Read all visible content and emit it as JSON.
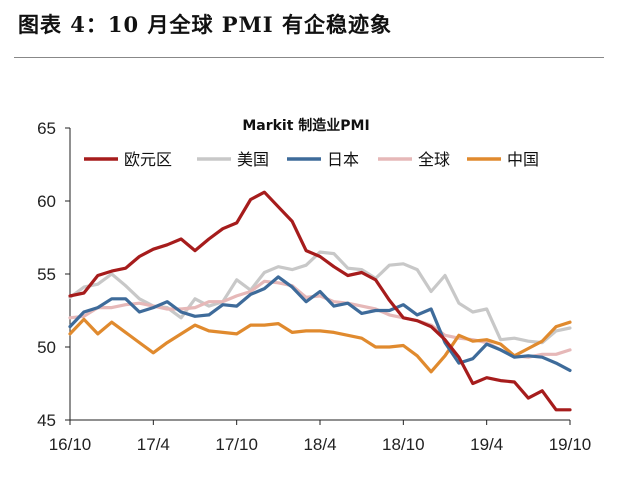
{
  "figure": {
    "title": "图表 4：10 月全球 PMI 有企稳迹象"
  },
  "colors": {
    "eurozone": "#a61c1c",
    "us": "#c8c8c8",
    "japan": "#3e6b9a",
    "global": "#e6b8b8",
    "china": "#e08a2e"
  },
  "chart_data": {
    "type": "line",
    "title": "Markit 制造业PMI",
    "xlabel": "",
    "ylabel": "",
    "ylim": [
      45,
      65
    ],
    "yticks": [
      "45",
      "50",
      "55",
      "60",
      "65"
    ],
    "x": [
      "16/10",
      "16/11",
      "16/12",
      "17/1",
      "17/2",
      "17/3",
      "17/4",
      "17/5",
      "17/6",
      "17/7",
      "17/8",
      "17/9",
      "17/10",
      "17/11",
      "17/12",
      "18/1",
      "18/2",
      "18/3",
      "18/4",
      "18/5",
      "18/6",
      "18/7",
      "18/8",
      "18/9",
      "18/10",
      "18/11",
      "18/12",
      "19/1",
      "19/2",
      "19/3",
      "19/4",
      "19/5",
      "19/6",
      "19/7",
      "19/8",
      "19/9",
      "19/10"
    ],
    "xtick_labels": [
      "16/10",
      "17/4",
      "17/10",
      "18/4",
      "18/10",
      "19/4",
      "19/10"
    ],
    "legend_position": "top-left",
    "grid": false,
    "series": [
      {
        "name": "欧元区",
        "color_key": "eurozone",
        "values": [
          53.5,
          53.7,
          54.9,
          55.2,
          55.4,
          56.2,
          56.7,
          57.0,
          57.4,
          56.6,
          57.4,
          58.1,
          58.5,
          60.1,
          60.6,
          59.6,
          58.6,
          56.6,
          56.2,
          55.5,
          54.9,
          55.1,
          54.6,
          53.2,
          52.0,
          51.8,
          51.4,
          50.5,
          49.3,
          47.5,
          47.9,
          47.7,
          47.6,
          46.5,
          47.0,
          45.7,
          45.7
        ]
      },
      {
        "name": "美国",
        "color_key": "us",
        "values": [
          53.4,
          54.1,
          54.3,
          55.0,
          54.2,
          53.3,
          52.8,
          52.7,
          52.0,
          53.3,
          52.8,
          53.1,
          54.6,
          53.9,
          55.1,
          55.5,
          55.3,
          55.6,
          56.5,
          56.4,
          55.4,
          55.3,
          54.7,
          55.6,
          55.7,
          55.3,
          53.8,
          54.9,
          53.0,
          52.4,
          52.6,
          50.5,
          50.6,
          50.4,
          50.3,
          51.1,
          51.3
        ]
      },
      {
        "name": "日本",
        "color_key": "japan",
        "values": [
          51.4,
          52.4,
          52.7,
          53.3,
          53.3,
          52.4,
          52.7,
          53.1,
          52.4,
          52.1,
          52.2,
          52.9,
          52.8,
          53.6,
          54.0,
          54.8,
          54.1,
          53.1,
          53.8,
          52.8,
          53.0,
          52.3,
          52.5,
          52.5,
          52.9,
          52.2,
          52.6,
          50.3,
          48.9,
          49.2,
          50.2,
          49.8,
          49.3,
          49.4,
          49.3,
          48.9,
          48.4
        ]
      },
      {
        "name": "全球",
        "color_key": "global",
        "values": [
          52.0,
          52.1,
          52.7,
          52.7,
          52.9,
          53.0,
          52.8,
          52.6,
          52.6,
          52.7,
          53.1,
          53.1,
          53.5,
          53.8,
          54.5,
          54.4,
          54.2,
          53.4,
          53.5,
          53.1,
          53.0,
          52.8,
          52.6,
          52.2,
          52.0,
          51.8,
          51.5,
          50.8,
          50.6,
          50.5,
          50.3,
          49.8,
          49.4,
          49.3,
          49.5,
          49.5,
          49.8
        ]
      },
      {
        "name": "中国",
        "color_key": "china",
        "values": [
          50.9,
          51.9,
          50.9,
          51.7,
          51.0,
          50.3,
          49.6,
          50.3,
          50.9,
          51.5,
          51.1,
          51.0,
          50.9,
          51.5,
          51.5,
          51.6,
          51.0,
          51.1,
          51.1,
          51.0,
          50.8,
          50.6,
          50.0,
          50.0,
          50.1,
          49.4,
          48.3,
          49.4,
          50.8,
          50.4,
          50.5,
          50.2,
          49.4,
          49.9,
          50.4,
          51.4,
          51.7
        ]
      }
    ]
  }
}
